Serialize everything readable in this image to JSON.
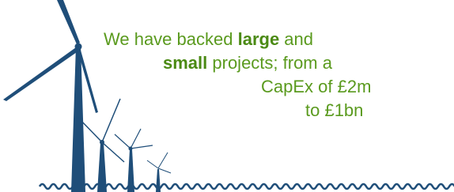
{
  "text": {
    "lines": [
      [
        {
          "t": "We have backed ",
          "bold": false
        },
        {
          "t": "large",
          "bold": true
        },
        {
          "t": " and",
          "bold": false
        }
      ],
      [
        {
          "t": "small",
          "bold": true
        },
        {
          "t": " projects; from a",
          "bold": false
        }
      ],
      [
        {
          "t": "CapEx of £2m",
          "bold": false
        }
      ],
      [
        {
          "t": "to £1bn",
          "bold": false
        }
      ]
    ]
  }
}
